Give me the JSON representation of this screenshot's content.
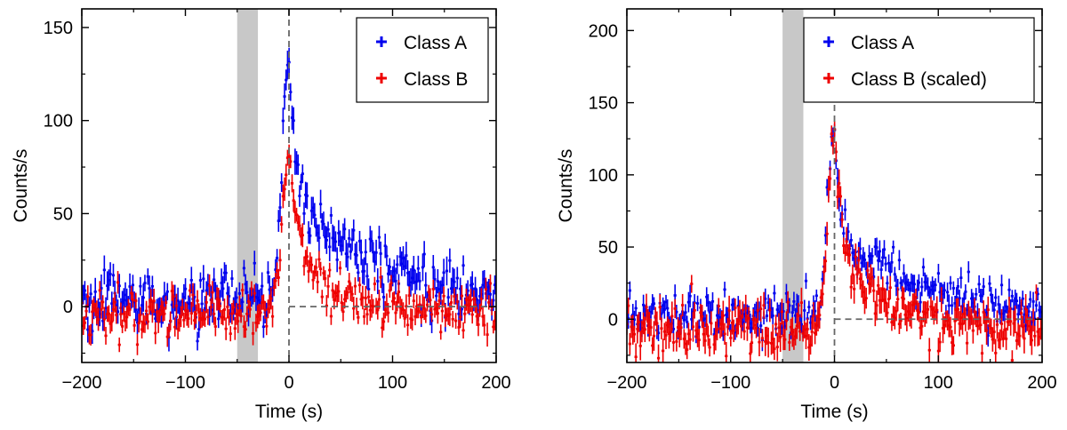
{
  "chart_data": [
    {
      "type": "scatter",
      "xlabel": "Time (s)",
      "ylabel": "Counts/s",
      "xlim": [
        -200,
        200
      ],
      "ylim": [
        -30,
        160
      ],
      "xticks": [
        -200,
        -100,
        0,
        100,
        200
      ],
      "xtick_labels": [
        "−200",
        "−100",
        "0",
        "100",
        "200"
      ],
      "yticks": [
        0,
        50,
        100,
        150
      ],
      "ytick_labels": [
        "0",
        "50",
        "100",
        "150"
      ],
      "shaded_region": [
        -50,
        -30
      ],
      "reference_lines": {
        "x": 0,
        "y": 0
      },
      "legend_position": "top-right",
      "series": [
        {
          "name": "Class A",
          "color": "#0000ee",
          "baseline": 3,
          "noise": 8,
          "err": 6,
          "peak_time": 0,
          "peak": 138,
          "rise": 4,
          "fast_amp": 72,
          "fast_tau": 6,
          "slow_amp": 58,
          "slow_tau": 75
        },
        {
          "name": "Class B",
          "color": "#ee0000",
          "baseline": -3,
          "noise": 7,
          "err": 5,
          "peak_time": 0,
          "peak": 85,
          "rise": 4,
          "fast_amp": 55,
          "fast_tau": 8,
          "slow_amp": 30,
          "slow_tau": 45
        }
      ]
    },
    {
      "type": "scatter",
      "xlabel": "Time (s)",
      "ylabel": "Counts/s",
      "xlim": [
        -200,
        200
      ],
      "ylim": [
        -30,
        215
      ],
      "xticks": [
        -200,
        -100,
        0,
        100,
        200
      ],
      "xtick_labels": [
        "−200",
        "−100",
        "0",
        "100",
        "200"
      ],
      "yticks": [
        0,
        50,
        100,
        150,
        200
      ],
      "ytick_labels": [
        "0",
        "50",
        "100",
        "150",
        "200"
      ],
      "shaded_region": [
        -50,
        -30
      ],
      "reference_lines": {
        "x": 0,
        "y": 0
      },
      "legend_position": "top-right",
      "series": [
        {
          "name": "Class A",
          "color": "#0000ee",
          "baseline": 3,
          "noise": 8,
          "err": 6,
          "peak_time": 0,
          "peak": 136,
          "rise": 4,
          "fast_amp": 72,
          "fast_tau": 6,
          "slow_amp": 58,
          "slow_tau": 75
        },
        {
          "name": "Class B (scaled)",
          "color": "#ee0000",
          "baseline": -6,
          "noise": 10,
          "err": 8,
          "peak_time": 0,
          "peak": 132,
          "rise": 4,
          "fast_amp": 85,
          "fast_tau": 8,
          "slow_amp": 47,
          "slow_tau": 45
        }
      ]
    }
  ]
}
